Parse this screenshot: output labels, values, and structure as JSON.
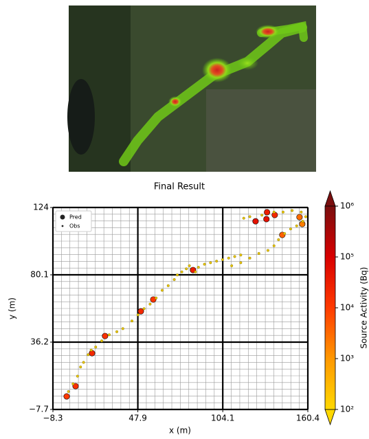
{
  "chart_data": {
    "type": "scatter",
    "title": "Final Result",
    "x_label": "x (m)",
    "y_label": "y (m)",
    "xlim": [
      -8.3,
      160.4
    ],
    "ylim": [
      -7.7,
      124.0
    ],
    "xticks": [
      {
        "value": -8.3,
        "label": "−8.3"
      },
      47.9,
      104.1,
      160.4
    ],
    "yticks": [
      {
        "value": -7.7,
        "label": "−7.7"
      },
      36.2,
      80.1,
      124.0
    ],
    "grid": true,
    "legend": "upper left",
    "colorbar": {
      "label": "Source Activity (Bq)",
      "log": true,
      "clim": [
        100,
        1000000
      ],
      "ticks": [
        {
          "value": 100,
          "label": "10²"
        },
        {
          "value": 1000,
          "label": "10³"
        },
        {
          "value": 10000,
          "label": "10⁴"
        },
        {
          "value": 100000,
          "label": "10⁵"
        },
        {
          "value": 1000000,
          "label": "10⁶"
        }
      ],
      "colormap": [
        "#ffd800",
        "#ff9800",
        "#ff3a00",
        "#d80000",
        "#7a0f0f"
      ]
    },
    "series": [
      {
        "name": "Pred",
        "color": "#000000",
        "x": [
          0.8,
          6.7,
          17.6,
          26.2,
          49.9,
          58.1,
          84.4,
          125.8,
          133.0,
          133.4,
          138.5,
          143.5,
          154.9,
          156.7
        ],
        "values": [
          0.8,
          7.5,
          29.0,
          40.2,
          56.3,
          64.0,
          83.2,
          115.0,
          116.4,
          120.9,
          119.1,
          106.1,
          117.7,
          113.2
        ],
        "activity": [
          10000,
          15000,
          20000,
          15000,
          20000,
          12000,
          30000,
          50000,
          50000,
          30000,
          20000,
          4000,
          3000,
          2000
        ]
      },
      {
        "name": "Obs",
        "color": "#e8c400",
        "x": [
          2,
          5,
          8,
          10,
          12,
          15,
          17,
          20,
          24,
          29,
          34,
          38,
          44,
          48,
          52,
          56,
          60,
          64,
          68,
          72,
          74,
          77,
          80,
          82,
          86,
          88,
          92,
          96,
          100,
          104,
          108,
          112,
          116,
          110,
          116,
          122,
          128,
          134,
          138,
          141,
          145,
          149,
          153,
          157,
          159,
          156,
          150,
          144,
          138,
          130,
          122,
          118
        ],
        "values": [
          4,
          9,
          14,
          20,
          23,
          28,
          31,
          33,
          37,
          41,
          43,
          45,
          50,
          54,
          58,
          61,
          65,
          70,
          73,
          77,
          80,
          82,
          84,
          86,
          82,
          85,
          87,
          88,
          89,
          90,
          91,
          92,
          93,
          86,
          88,
          91,
          94,
          96,
          99,
          103,
          107,
          110,
          112,
          115,
          118,
          121,
          122,
          121,
          121,
          119,
          118,
          117
        ]
      }
    ]
  }
}
